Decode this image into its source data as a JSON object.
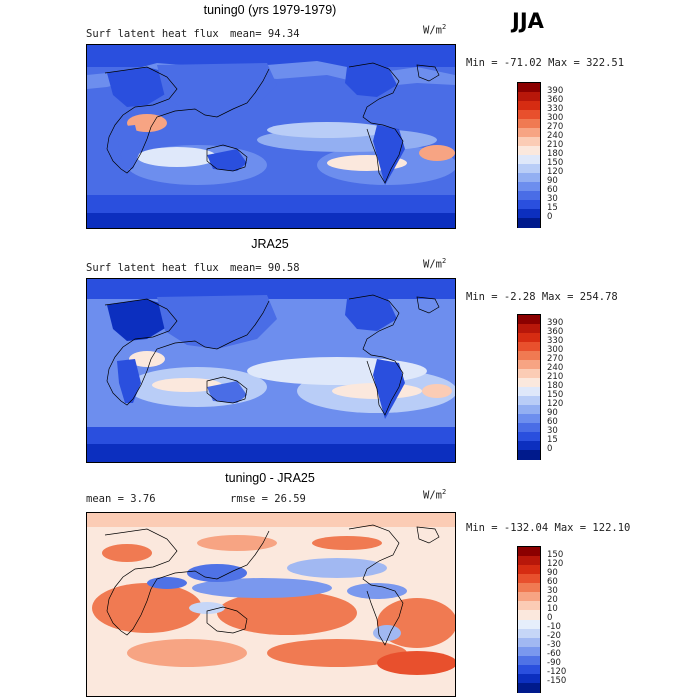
{
  "season": "JJA",
  "colors": {
    "ocean_mid": "#7f9cf0",
    "land_line": "#000000"
  },
  "panels": [
    {
      "title": "tuning0 (yrs 1979-1979)",
      "left_text": "Surf latent heat flux",
      "mean_text": "mean=  94.34",
      "units": "W/m",
      "units_sup": "2",
      "minmax": "Min = -71.02 Max = 322.51",
      "colorbar": {
        "levels": [
          "390",
          "360",
          "330",
          "300",
          "270",
          "240",
          "210",
          "180",
          "150",
          "120",
          "90",
          "60",
          "30",
          "15",
          "0"
        ],
        "colors": [
          "#8b0000",
          "#b8170a",
          "#d62c12",
          "#e8502d",
          "#f07a52",
          "#f7a483",
          "#fbccb5",
          "#fbe8dd",
          "#dfe8fa",
          "#b9cdf7",
          "#93aff2",
          "#6d8eee",
          "#4a6de6",
          "#2a4fde",
          "#0c2fbf",
          "#001a8c"
        ]
      }
    },
    {
      "title": "JRA25",
      "left_text": "Surf latent heat flux",
      "mean_text": "mean=  90.58",
      "units": "W/m",
      "units_sup": "2",
      "minmax": "Min =  -2.28 Max = 254.78",
      "colorbar": {
        "levels": [
          "390",
          "360",
          "330",
          "300",
          "270",
          "240",
          "210",
          "180",
          "150",
          "120",
          "90",
          "60",
          "30",
          "15",
          "0"
        ],
        "colors": [
          "#8b0000",
          "#b8170a",
          "#d62c12",
          "#e8502d",
          "#f07a52",
          "#f7a483",
          "#fbccb5",
          "#fbe8dd",
          "#dfe8fa",
          "#b9cdf7",
          "#93aff2",
          "#6d8eee",
          "#4a6de6",
          "#2a4fde",
          "#0c2fbf",
          "#001a8c"
        ]
      }
    },
    {
      "title": "tuning0 - JRA25",
      "left_text": "mean =   3.76",
      "mean_text": "rmse =  26.59",
      "units": "W/m",
      "units_sup": "2",
      "minmax": "Min = -132.04 Max = 122.10",
      "colorbar": {
        "levels": [
          "150",
          "120",
          "90",
          "60",
          "30",
          "20",
          "10",
          "0",
          "-10",
          "-20",
          "-30",
          "-60",
          "-90",
          "-120",
          "-150"
        ],
        "colors": [
          "#8b0000",
          "#b8170a",
          "#d62c12",
          "#e8502d",
          "#f07a52",
          "#f7a483",
          "#fbccb5",
          "#fbe8dd",
          "#e6eefb",
          "#c6d6f7",
          "#a1b8f2",
          "#7a98ee",
          "#4f72e6",
          "#2a4fde",
          "#0c2fbf",
          "#001a8c"
        ]
      }
    }
  ]
}
